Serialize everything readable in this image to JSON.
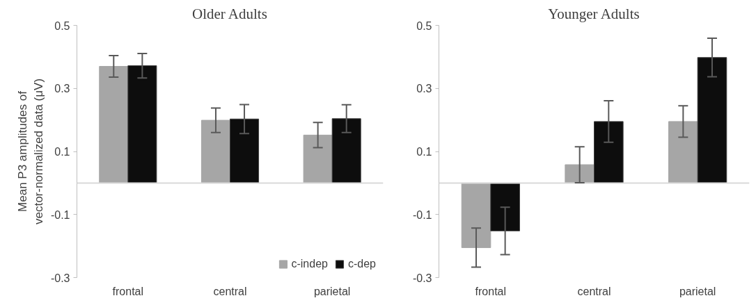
{
  "chart_data": [
    {
      "type": "bar",
      "title": "Older Adults",
      "ylabel": "Mean P3 amplitudes of\nvector-normalized data (μV)",
      "categories": [
        "frontal",
        "central",
        "parietal"
      ],
      "ylim": [
        -0.3,
        0.5
      ],
      "yticks": [
        -0.3,
        -0.1,
        0.1,
        0.3,
        0.5
      ],
      "grid": false,
      "legend": "bottom right",
      "ref_lines": [
        {
          "axis": "y",
          "value": 0,
          "color": "#d9d9d9"
        }
      ],
      "series": [
        {
          "name": "c-indep",
          "color": "#a6a6a6",
          "values": [
            0.37,
            0.199,
            0.152
          ],
          "errors": [
            0.034,
            0.039,
            0.04
          ]
        },
        {
          "name": "c-dep",
          "color": "#0d0d0d",
          "values": [
            0.372,
            0.203,
            0.204
          ],
          "errors": [
            0.039,
            0.046,
            0.044
          ]
        }
      ]
    },
    {
      "type": "bar",
      "title": "Younger Adults",
      "categories": [
        "frontal",
        "central",
        "parietal"
      ],
      "ylim": [
        -0.3,
        0.5
      ],
      "yticks": [
        -0.3,
        -0.1,
        0.1,
        0.3,
        0.5
      ],
      "grid": false,
      "ref_lines": [
        {
          "axis": "y",
          "value": 0,
          "color": "#d9d9d9"
        }
      ],
      "series": [
        {
          "color": "#a6a6a6",
          "values": [
            -0.205,
            0.058,
            0.195
          ],
          "errors": [
            0.062,
            0.057,
            0.05
          ]
        },
        {
          "color": "#0d0d0d",
          "values": [
            -0.152,
            0.195,
            0.398
          ],
          "errors": [
            0.075,
            0.066,
            0.061
          ]
        }
      ]
    }
  ]
}
